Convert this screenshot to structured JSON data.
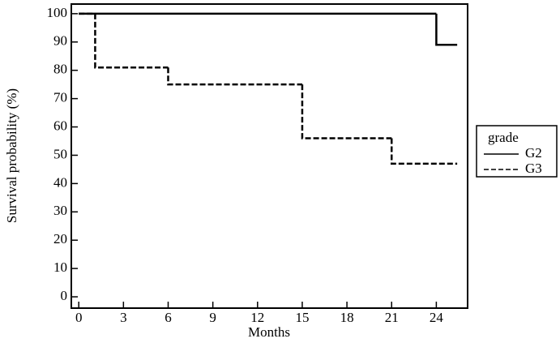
{
  "chart_data": {
    "type": "step",
    "x_label": "Months",
    "y_label": "Survival probability (%)",
    "legend_title": "grade",
    "legend": "right",
    "series": [
      {
        "name": "G2",
        "color": "#000000",
        "dash": "solid",
        "x": [
          0,
          24,
          25.4
        ],
        "values": [
          100,
          89,
          89
        ]
      },
      {
        "name": "G3",
        "color": "#000000",
        "dash": "dashed",
        "x": [
          0,
          1.1,
          6,
          15,
          21,
          25.4
        ],
        "values": [
          100,
          81,
          75,
          56,
          47,
          47
        ]
      }
    ],
    "xlim": [
      -0.5,
      26.1
    ],
    "xticks": [
      0,
      3,
      6,
      9,
      12,
      15,
      18,
      21,
      24
    ],
    "ylim": [
      -4,
      103.4
    ],
    "yticks": [
      0,
      10,
      20,
      30,
      40,
      50,
      60,
      70,
      80,
      90,
      100
    ]
  }
}
